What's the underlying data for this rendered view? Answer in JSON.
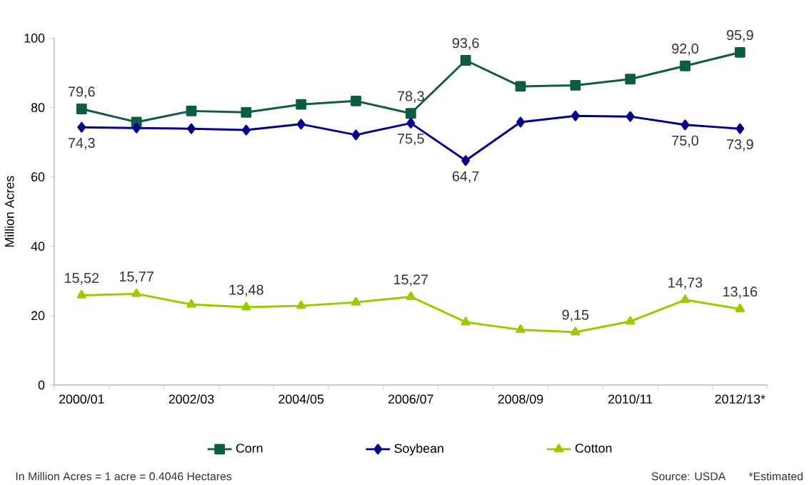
{
  "chart_data": {
    "type": "line",
    "ylabel": "Million Acres",
    "categories": [
      "2000/01",
      null,
      "2002/03",
      null,
      "2004/05",
      null,
      "2006/07",
      null,
      "2008/09",
      null,
      "2010/11",
      null,
      "2012/13*"
    ],
    "series": [
      {
        "name": "Corn",
        "color": "#0e5c44",
        "marker": "square",
        "values": [
          79.6,
          75.8,
          79.0,
          78.6,
          80.9,
          81.9,
          78.3,
          93.6,
          86.1,
          86.4,
          88.2,
          92.0,
          95.9
        ],
        "value_labels": [
          "79,6",
          null,
          null,
          null,
          null,
          null,
          "78,3",
          "93,6",
          null,
          null,
          null,
          "92,0",
          "95,9"
        ]
      },
      {
        "name": "Soybean",
        "color": "#00008b",
        "marker": "diamond",
        "values": [
          74.3,
          74.1,
          73.9,
          73.5,
          75.2,
          72.1,
          75.5,
          64.7,
          75.8,
          77.6,
          77.4,
          75.0,
          73.9
        ],
        "value_labels": [
          "74,3",
          null,
          null,
          null,
          null,
          null,
          "75,5",
          "64,7",
          null,
          null,
          null,
          "75,0",
          "73,9"
        ]
      },
      {
        "name": "Cotton",
        "color": "#99cc00",
        "marker": "triangle",
        "axis": "y2",
        "values": [
          15.52,
          15.77,
          13.94,
          13.48,
          13.7,
          14.3,
          15.27,
          10.88,
          9.56,
          9.15,
          11.0,
          14.73,
          13.16
        ],
        "value_labels": [
          "15,52",
          "15,77",
          null,
          "13,48",
          null,
          null,
          "15,27",
          null,
          null,
          "9,15",
          null,
          "14,73",
          "13,16"
        ]
      }
    ],
    "ylim": [
      0,
      100
    ],
    "y2lim": [
      0,
      60
    ],
    "yticks": [
      0,
      20,
      40,
      60,
      80,
      100
    ],
    "grid": false,
    "legend": "bottom",
    "line_style": "solid",
    "annotations": [
      "In Million Acres = 1 acre = 0.4046 Hectares",
      "Source: USDA",
      "*Estimated"
    ]
  }
}
